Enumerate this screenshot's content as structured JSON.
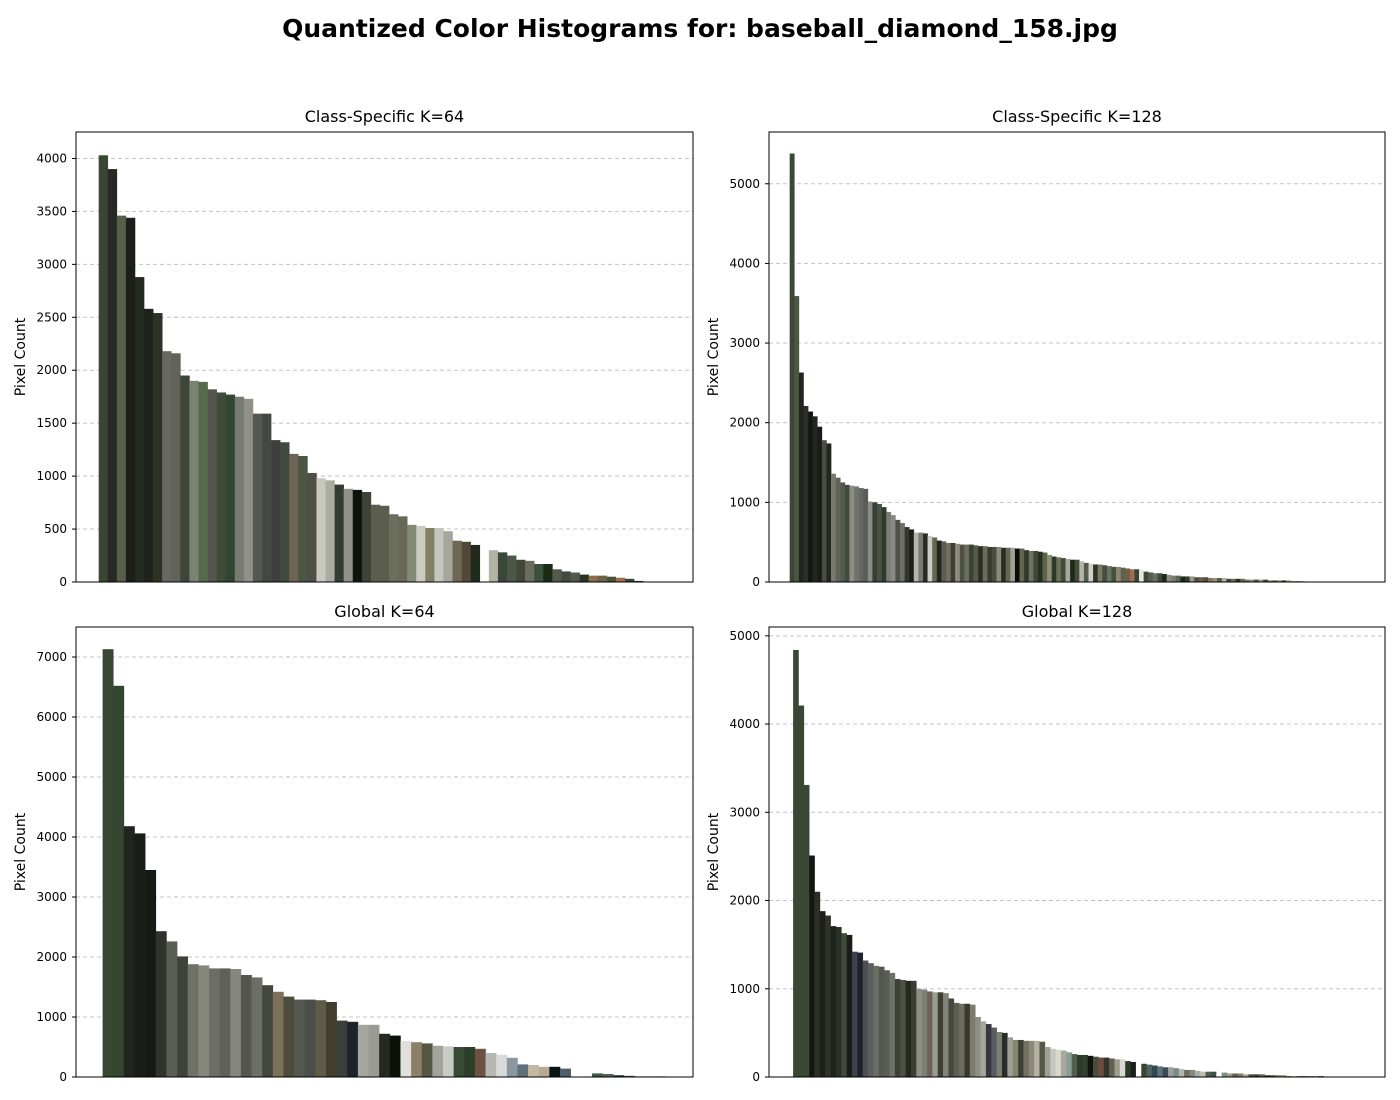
{
  "figure": {
    "title": "Quantized Color Histograms for: baseball_diamond_158.jpg"
  },
  "chart_data": [
    {
      "type": "bar",
      "title": "Class-Specific K=64",
      "xlabel": "",
      "ylabel": "Pixel Count",
      "ylim": [
        0,
        4250
      ],
      "yticks": [
        0,
        500,
        1000,
        1500,
        2000,
        2500,
        3000,
        3500,
        4000
      ],
      "xlim": [
        -3,
        65
      ],
      "grid": "y-dashed",
      "values": [
        4030,
        3900,
        3460,
        3440,
        2880,
        2580,
        2540,
        2180,
        2160,
        1950,
        1900,
        1890,
        1820,
        1790,
        1770,
        1750,
        1730,
        1590,
        1590,
        1340,
        1320,
        1210,
        1190,
        1030,
        980,
        960,
        920,
        880,
        870,
        850,
        730,
        720,
        640,
        620,
        540,
        530,
        510,
        510,
        480,
        390,
        380,
        350,
        0,
        300,
        280,
        250,
        210,
        200,
        170,
        170,
        120,
        100,
        90,
        70,
        60,
        60,
        50,
        40,
        30,
        10,
        0,
        0,
        0,
        0
      ],
      "colors": [
        "#384633",
        "#262a22",
        "#5a5c4a",
        "#1c1e19",
        "#252a21",
        "#1f221c",
        "#2f3126",
        "#676960",
        "#5f6358",
        "#3c4639",
        "#7c8272",
        "#556a4a",
        "#55564f",
        "#3f4a3a",
        "#324531",
        "#777c73",
        "#909089",
        "#545852",
        "#434840",
        "#3e3f3c",
        "#404a3f",
        "#6f6454",
        "#4a5842",
        "#4e4f46",
        "#c8c8bf",
        "#aaac9f",
        "#323e31",
        "#90918a",
        "#0f130d",
        "#3e4338",
        "#5b5e4b",
        "#5d5c4c",
        "#6c6e5c",
        "#696755",
        "#858a76",
        "#cbcac1",
        "#808064",
        "#c4c5bb",
        "#a4a69c",
        "#6d6754",
        "#514838",
        "#1f2a1c",
        "#ffffff",
        "#b4b2a3",
        "#39483a",
        "#4a5845",
        "#444638",
        "#6a6d5d",
        "#3b4f39",
        "#1a2a16",
        "#55594a",
        "#464b3d",
        "#4f5a4a",
        "#263622",
        "#8e6d4d",
        "#6e6248",
        "#4c5138",
        "#9d6e4e",
        "#3a4232",
        "#2b2f25",
        "#ffffff",
        "#ffffff",
        "#ffffff",
        "#ffffff"
      ]
    },
    {
      "type": "bar",
      "title": "Class-Specific K=128",
      "xlabel": "",
      "ylabel": "Pixel Count",
      "ylim": [
        0,
        5650
      ],
      "yticks": [
        0,
        1000,
        2000,
        3000,
        4000,
        5000
      ],
      "xlim": [
        -5,
        129
      ],
      "grid": "y-dashed",
      "values": [
        5380,
        3590,
        2630,
        2210,
        2140,
        2080,
        1950,
        1780,
        1740,
        1360,
        1310,
        1250,
        1220,
        1210,
        1200,
        1180,
        1170,
        1010,
        1000,
        980,
        940,
        880,
        840,
        780,
        740,
        690,
        660,
        620,
        620,
        610,
        580,
        560,
        520,
        510,
        490,
        490,
        480,
        470,
        470,
        470,
        460,
        450,
        450,
        440,
        440,
        440,
        430,
        430,
        430,
        420,
        420,
        400,
        390,
        390,
        380,
        370,
        340,
        320,
        310,
        300,
        290,
        280,
        280,
        260,
        240,
        230,
        220,
        220,
        210,
        200,
        190,
        190,
        180,
        170,
        160,
        160,
        150,
        130,
        120,
        110,
        110,
        100,
        90,
        80,
        80,
        70,
        70,
        70,
        60,
        60,
        60,
        50,
        50,
        50,
        50,
        40,
        40,
        40,
        40,
        30,
        30,
        30,
        30,
        30,
        20,
        20,
        20,
        20,
        20,
        10,
        10,
        10,
        10,
        0,
        0,
        0,
        0,
        0,
        0,
        0,
        0,
        0,
        0,
        0,
        0,
        0,
        0,
        0
      ],
      "colors": [
        "#3a4734",
        "#4a5842",
        "#1f241c",
        "#2b2f28",
        "#141613",
        "#23261f",
        "#1b1c18",
        "#4b4c44",
        "#23281f",
        "#797a72",
        "#616359",
        "#55594f",
        "#3d4d37",
        "#8c8e86",
        "#70726b",
        "#666762",
        "#5b5c56",
        "#8b8c87",
        "#3a3c37",
        "#47523f",
        "#2f3a2c",
        "#7a7d73",
        "#8a8a84",
        "#4c5246",
        "#6d6e66",
        "#333731",
        "#1c1f1a",
        "#b4b5ac",
        "#7e7b6e",
        "#2a2c25",
        "#ccccc2",
        "#666652",
        "#22261e",
        "#5b5d4e",
        "#717061",
        "#3d3f33",
        "#8d8c7a",
        "#4e5243",
        "#6d6e5c",
        "#3b4234",
        "#535a48",
        "#28301f",
        "#6c6c5c",
        "#393c2e",
        "#4b4e3e",
        "#8a8b7a",
        "#27301f",
        "#656654",
        "#a2a493",
        "#0b0e08",
        "#62664e",
        "#33382c",
        "#6f725e",
        "#404935",
        "#26321f",
        "#5c6447",
        "#8c8f79",
        "#2e3a28",
        "#706d5b",
        "#3e4c38",
        "#a6a99a",
        "#1e2a19",
        "#414c3c",
        "#b5b4a6",
        "#535d49",
        "#d0d0c6",
        "#2e332a",
        "#7a7964",
        "#464d40",
        "#67725f",
        "#48503e",
        "#8b8574",
        "#5e6350",
        "#755c48",
        "#9c6f55",
        "#3a4530",
        "#e8e8e0",
        "#404a38",
        "#53604a",
        "#6b6e5d",
        "#3f4a3b",
        "#1c2a18",
        "#8a8c80",
        "#7a7c6c",
        "#606552",
        "#1b2518",
        "#2e3c29",
        "#9a9888",
        "#4b5340",
        "#6e5f4c",
        "#5a4a3a",
        "#817560",
        "#a88a6a",
        "#4e5e46",
        "#b3b2a3",
        "#3d4a37",
        "#6e6b5a",
        "#2a3426",
        "#5e6d53",
        "#7a6d57",
        "#94907e",
        "#48503e",
        "#a09a88",
        "#3b4832",
        "#6c7b63",
        "#564f42",
        "#838879",
        "#2e3726",
        "#a4a393",
        "#606a58",
        "#474e3e",
        "#8e8f81",
        "#ffffff",
        "#ffffff",
        "#ffffff",
        "#ffffff",
        "#ffffff",
        "#ffffff",
        "#ffffff",
        "#ffffff",
        "#ffffff",
        "#ffffff",
        "#ffffff",
        "#ffffff",
        "#ffffff",
        "#ffffff",
        "#ffffff"
      ]
    },
    {
      "type": "bar",
      "title": "Global K=64",
      "xlabel": "",
      "ylabel": "Pixel Count",
      "ylim": [
        0,
        7500
      ],
      "yticks": [
        0,
        1000,
        2000,
        3000,
        4000,
        5000,
        6000,
        7000
      ],
      "xlim": [
        -3,
        55
      ],
      "grid": "y-dashed",
      "values": [
        7130,
        6520,
        4180,
        4060,
        3450,
        2430,
        2260,
        2010,
        1880,
        1860,
        1810,
        1810,
        1800,
        1700,
        1660,
        1530,
        1420,
        1340,
        1290,
        1290,
        1280,
        1250,
        940,
        920,
        870,
        870,
        720,
        690,
        600,
        580,
        560,
        520,
        510,
        500,
        500,
        470,
        400,
        370,
        320,
        210,
        200,
        170,
        170,
        140,
        0,
        0,
        60,
        50,
        30,
        20,
        10,
        10,
        10,
        0,
        0
      ],
      "colors": [
        "#3a4734",
        "#344530",
        "#22251f",
        "#1a1c17",
        "#171a14",
        "#30332b",
        "#5b5e54",
        "#3f423b",
        "#6f7167",
        "#86887d",
        "#6c6e66",
        "#5f615a",
        "#85867f",
        "#55574f",
        "#6d6f66",
        "#434640",
        "#7b7058",
        "#4d4c3c",
        "#555850",
        "#4b4f49",
        "#5f5b47",
        "#403e2f",
        "#3a3f3c",
        "#1d232a",
        "#a5a69e",
        "#9a9b93",
        "#232a1f",
        "#0c100b",
        "#e0e1da",
        "#8c8068",
        "#565644",
        "#a2a49c",
        "#c8cbc6",
        "#364a35",
        "#2d3e2b",
        "#6d5244",
        "#b6b8b5",
        "#d7dad7",
        "#8a98a4",
        "#5f7078",
        "#c4b8a3",
        "#b7a992",
        "#0d1315",
        "#4f5d6c",
        "#ffffff",
        "#ffffff",
        "#3d5a4a",
        "#55625a",
        "#30342e",
        "#494f4a",
        "#5a5a5a",
        "#888888",
        "#2a3040",
        "#ffffff",
        "#ffffff"
      ]
    },
    {
      "type": "bar",
      "title": "Global K=128",
      "xlabel": "",
      "ylabel": "Pixel Count",
      "ylim": [
        0,
        5100
      ],
      "yticks": [
        0,
        1000,
        2000,
        3000,
        4000,
        5000
      ],
      "xlim": [
        -5,
        110
      ],
      "grid": "y-dashed",
      "values": [
        4840,
        4210,
        3310,
        2510,
        2100,
        1880,
        1830,
        1710,
        1700,
        1630,
        1610,
        1420,
        1410,
        1320,
        1290,
        1260,
        1250,
        1210,
        1180,
        1110,
        1100,
        1090,
        1090,
        1000,
        990,
        970,
        960,
        960,
        950,
        890,
        840,
        830,
        830,
        820,
        680,
        630,
        600,
        560,
        510,
        500,
        450,
        420,
        420,
        410,
        410,
        410,
        400,
        340,
        320,
        310,
        300,
        280,
        260,
        250,
        250,
        240,
        230,
        220,
        220,
        210,
        200,
        200,
        180,
        170,
        170,
        150,
        140,
        130,
        120,
        110,
        110,
        100,
        90,
        80,
        80,
        70,
        60,
        60,
        60,
        50,
        50,
        40,
        40,
        40,
        30,
        30,
        30,
        30,
        20,
        20,
        20,
        20,
        10,
        10,
        10,
        10,
        10,
        10,
        10,
        0,
        0,
        0,
        0,
        0,
        0,
        0,
        0,
        0,
        0,
        0
      ],
      "colors": [
        "#3a4734",
        "#384833",
        "#3a4936",
        "#151612",
        "#2b3027",
        "#1d2019",
        "#2e3229",
        "#1e221b",
        "#2b3026",
        "#3f4a3a",
        "#1a1d17",
        "#3e414b",
        "#1e222b",
        "#4c4d55",
        "#5c5e5a",
        "#6a6c65",
        "#545650",
        "#5a5c55",
        "#6e7069",
        "#3d4037",
        "#4e5047",
        "#252a1d",
        "#3a3d2f",
        "#8e8f86",
        "#7d7f76",
        "#6d6054",
        "#9b9c91",
        "#3d3f35",
        "#82837a",
        "#47493c",
        "#5b5e50",
        "#6b6d5d",
        "#393a2d",
        "#7a7c6c",
        "#8d9185",
        "#a4a79a",
        "#36373f",
        "#595a62",
        "#7a7e70",
        "#2a2c27",
        "#9e9f94",
        "#85866d",
        "#3e4035",
        "#73705f",
        "#8d8978",
        "#b3b2a4",
        "#595646",
        "#9fa094",
        "#c5c6bc",
        "#d7d8ce",
        "#a8a89c",
        "#8a9a94",
        "#51604d",
        "#2e3a2b",
        "#34402f",
        "#111510",
        "#4a4c3e",
        "#6b4d3f",
        "#323528",
        "#5f6151",
        "#9e9c8a",
        "#d9d9d3",
        "#2b3a28",
        "#1a1e1e",
        "#ffffff",
        "#3d4530",
        "#4f6060",
        "#2f4a4f",
        "#5f7080",
        "#3f4a5a",
        "#9aa0a0",
        "#7b8a8a",
        "#b5b5b0",
        "#6d6d5f",
        "#88887a",
        "#a6b0a8",
        "#c0bfb0",
        "#505f5a",
        "#3f4e45",
        "#ffffff",
        "#7f8f7f",
        "#9a968a",
        "#6d5e48",
        "#857b6a",
        "#b0a896",
        "#4c4740",
        "#3a3a33",
        "#5e5e52",
        "#2f3530",
        "#404a3a",
        "#777760",
        "#8c8675",
        "#556050",
        "#b9b9a5",
        "#4a5049",
        "#3e463e",
        "#6a7060",
        "#838a80",
        "#2c3230",
        "#ffffff",
        "#ffffff",
        "#ffffff",
        "#ffffff",
        "#ffffff",
        "#ffffff",
        "#ffffff",
        "#ffffff",
        "#ffffff",
        "#ffffff",
        "#ffffff"
      ]
    }
  ]
}
